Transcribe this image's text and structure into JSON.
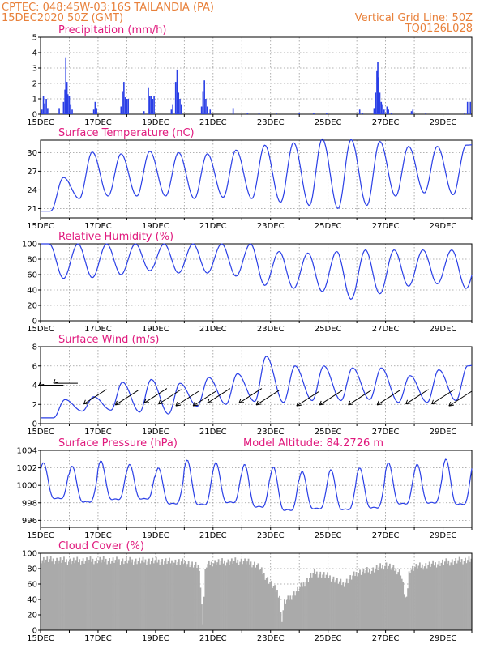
{
  "header": {
    "line1": "CPTEC:    048:45W-03:16S   TAILANDIA (PA)",
    "line2": "15DEC2020 50Z (GMT)",
    "right1": "Vertical Grid Line: 50Z",
    "right2": "TQ0126L028"
  },
  "colors": {
    "header": "#e8803a",
    "title": "#e0197d",
    "series": "#2a3fe6",
    "cloud": "#aaaaaa",
    "grid": "#999999"
  },
  "x_tick_labels": [
    "15DEC",
    "17DEC",
    "19DEC",
    "21DEC",
    "23DEC",
    "25DEC",
    "27DEC",
    "29DEC"
  ],
  "chart_data": [
    {
      "id": "precip",
      "type": "bar",
      "title": "Precipitation (mm/h)",
      "x_range_days": [
        0,
        15
      ],
      "ylim": [
        0,
        5
      ],
      "yticks": [
        0,
        1,
        2,
        3,
        4,
        5
      ],
      "points": [
        [
          0.05,
          0.3
        ],
        [
          0.1,
          1.2
        ],
        [
          0.15,
          0.7
        ],
        [
          0.2,
          1.0
        ],
        [
          0.25,
          0.4
        ],
        [
          0.65,
          0.4
        ],
        [
          0.8,
          0.8
        ],
        [
          0.85,
          1.6
        ],
        [
          0.88,
          3.7
        ],
        [
          0.92,
          2.1
        ],
        [
          0.95,
          1.3
        ],
        [
          1.0,
          1.2
        ],
        [
          1.05,
          0.6
        ],
        [
          1.1,
          0.3
        ],
        [
          1.85,
          0.3
        ],
        [
          1.9,
          0.8
        ],
        [
          1.95,
          0.4
        ],
        [
          2.8,
          0.5
        ],
        [
          2.85,
          1.5
        ],
        [
          2.9,
          2.1
        ],
        [
          2.95,
          1.1
        ],
        [
          3.0,
          1.0
        ],
        [
          3.05,
          1.0
        ],
        [
          3.6,
          0.2
        ],
        [
          3.75,
          1.7
        ],
        [
          3.8,
          1.2
        ],
        [
          3.85,
          1.2
        ],
        [
          3.9,
          1.0
        ],
        [
          3.95,
          1.2
        ],
        [
          4.55,
          0.3
        ],
        [
          4.6,
          0.6
        ],
        [
          4.7,
          2.1
        ],
        [
          4.75,
          2.9
        ],
        [
          4.8,
          1.4
        ],
        [
          4.85,
          1.0
        ],
        [
          4.9,
          0.6
        ],
        [
          5.6,
          0.5
        ],
        [
          5.65,
          1.5
        ],
        [
          5.7,
          2.2
        ],
        [
          5.75,
          1.0
        ],
        [
          5.8,
          0.5
        ],
        [
          5.9,
          0.3
        ],
        [
          6.7,
          0.4
        ],
        [
          7.2,
          0.05
        ],
        [
          7.6,
          0.1
        ],
        [
          8.2,
          0.05
        ],
        [
          9.0,
          0.08
        ],
        [
          9.5,
          0.1
        ],
        [
          9.95,
          0.05
        ],
        [
          11.1,
          0.3
        ],
        [
          11.2,
          0.1
        ],
        [
          11.6,
          0.4
        ],
        [
          11.65,
          1.4
        ],
        [
          11.7,
          2.8
        ],
        [
          11.73,
          3.4
        ],
        [
          11.76,
          2.4
        ],
        [
          11.8,
          1.4
        ],
        [
          11.85,
          0.8
        ],
        [
          11.9,
          0.6
        ],
        [
          11.95,
          0.3
        ],
        [
          12.05,
          0.5
        ],
        [
          12.1,
          0.3
        ],
        [
          12.2,
          0.1
        ],
        [
          12.9,
          0.2
        ],
        [
          12.95,
          0.3
        ],
        [
          13.4,
          0.1
        ],
        [
          14.75,
          0.1
        ],
        [
          14.85,
          0.8
        ],
        [
          14.95,
          0.8
        ]
      ]
    },
    {
      "id": "temp",
      "type": "line",
      "title": "Surface Temperature (nC)",
      "x_range_days": [
        0,
        15
      ],
      "ylim": [
        19.5,
        32
      ],
      "yticks": [
        21,
        24,
        27,
        30
      ],
      "maxima": [
        26.0,
        30.1,
        29.8,
        30.2,
        30.0,
        29.8,
        30.4,
        31.2,
        31.6,
        32.2,
        32.1,
        31.8,
        31.0,
        31.0,
        31.2,
        31.8
      ],
      "minima": [
        20.6,
        22.6,
        23.0,
        23.0,
        23.0,
        22.6,
        22.8,
        22.6,
        22.0,
        21.5,
        21.0,
        21.5,
        23.0,
        23.5,
        23.2
      ]
    },
    {
      "id": "rh",
      "type": "line",
      "title": "Relative Humidity (%)",
      "x_range_days": [
        0,
        15
      ],
      "ylim": [
        0,
        100
      ],
      "yticks": [
        0,
        20,
        40,
        60,
        80,
        100
      ],
      "maxima": [
        100,
        100,
        100,
        100,
        100,
        100,
        100,
        100,
        90,
        88,
        90,
        92,
        92,
        92,
        92,
        92
      ],
      "minima": [
        55,
        56,
        60,
        65,
        62,
        62,
        58,
        46,
        42,
        38,
        28,
        35,
        45,
        48,
        42
      ]
    },
    {
      "id": "wind",
      "type": "line",
      "title": "Surface Wind (m/s)",
      "x_range_days": [
        0,
        15
      ],
      "ylim": [
        0,
        8
      ],
      "yticks": [
        0,
        2,
        4,
        6,
        8
      ],
      "maxima": [
        2.5,
        2.8,
        4.3,
        4.6,
        4.2,
        4.8,
        5.2,
        7.0,
        6.0,
        6.0,
        5.8,
        5.8,
        5.0,
        5.6,
        6.0,
        7.0
      ],
      "minima": [
        0.6,
        1.3,
        1.4,
        1.2,
        1.0,
        1.8,
        2.0,
        2.3,
        2.2,
        2.4,
        2.4,
        2.5,
        2.2,
        2.2,
        2.4
      ],
      "arrows": [
        [
          0.4,
          4.0,
          0,
          1
        ],
        [
          0.9,
          4.2,
          0,
          1
        ],
        [
          1.9,
          2.8,
          1,
          1
        ],
        [
          3.0,
          2.7,
          1,
          1
        ],
        [
          4.0,
          2.9,
          1,
          1
        ],
        [
          4.5,
          2.8,
          1,
          1
        ],
        [
          5.1,
          2.6,
          1,
          1
        ],
        [
          5.7,
          2.6,
          1,
          1
        ],
        [
          6.2,
          2.9,
          1,
          1
        ],
        [
          7.3,
          2.9,
          1,
          1
        ],
        [
          7.9,
          2.7,
          1,
          1
        ],
        [
          9.3,
          2.6,
          1,
          1
        ],
        [
          10.1,
          2.7,
          1,
          1
        ],
        [
          11.1,
          2.7,
          1,
          1
        ],
        [
          12.1,
          2.7,
          1,
          1
        ],
        [
          13.1,
          2.8,
          1,
          1
        ],
        [
          14.0,
          2.8,
          1,
          1
        ],
        [
          14.6,
          2.6,
          1,
          1
        ]
      ]
    },
    {
      "id": "pres",
      "type": "line",
      "title": "Surface Pressure (hPa)",
      "annotation": "Model Altitude: 84.2726 m",
      "x_range_days": [
        0,
        15
      ],
      "ylim": [
        995.2,
        1004
      ],
      "yticks": [
        996,
        998,
        1000,
        1002,
        1004
      ],
      "daily_max": [
        1002.6,
        1002.2,
        1002.8,
        1002.4,
        1002.0,
        1002.9,
        1002.6,
        1002.4,
        1002.1,
        1001.6,
        1001.8,
        1002.0,
        1002.6,
        1002.4,
        1003.0,
        1003.2
      ],
      "daily_min": [
        997.2,
        996.8,
        997.0,
        997.2,
        996.6,
        996.2,
        996.6,
        996.0,
        995.6,
        996.0,
        995.8,
        996.0,
        996.4,
        996.6,
        996.2
      ]
    },
    {
      "id": "cloud",
      "type": "area",
      "title": "Cloud Cover (%)",
      "x_range_days": [
        0,
        15
      ],
      "ylim": [
        0,
        100
      ],
      "yticks": [
        0,
        20,
        40,
        60,
        80,
        100
      ],
      "knots": [
        [
          0.0,
          92
        ],
        [
          1.0,
          90
        ],
        [
          2.0,
          91
        ],
        [
          3.0,
          90
        ],
        [
          4.0,
          90
        ],
        [
          5.0,
          88
        ],
        [
          5.5,
          82
        ],
        [
          5.62,
          8
        ],
        [
          5.72,
          84
        ],
        [
          6.0,
          88
        ],
        [
          7.0,
          90
        ],
        [
          7.5,
          85
        ],
        [
          8.0,
          60
        ],
        [
          8.3,
          45
        ],
        [
          8.35,
          8
        ],
        [
          8.45,
          35
        ],
        [
          9.0,
          55
        ],
        [
          9.5,
          75
        ],
        [
          10.0,
          70
        ],
        [
          10.5,
          60
        ],
        [
          11.0,
          75
        ],
        [
          11.5,
          78
        ],
        [
          12.0,
          85
        ],
        [
          12.5,
          75
        ],
        [
          12.7,
          35
        ],
        [
          12.8,
          78
        ],
        [
          13.0,
          82
        ],
        [
          14.0,
          88
        ],
        [
          15.0,
          92
        ]
      ]
    }
  ]
}
